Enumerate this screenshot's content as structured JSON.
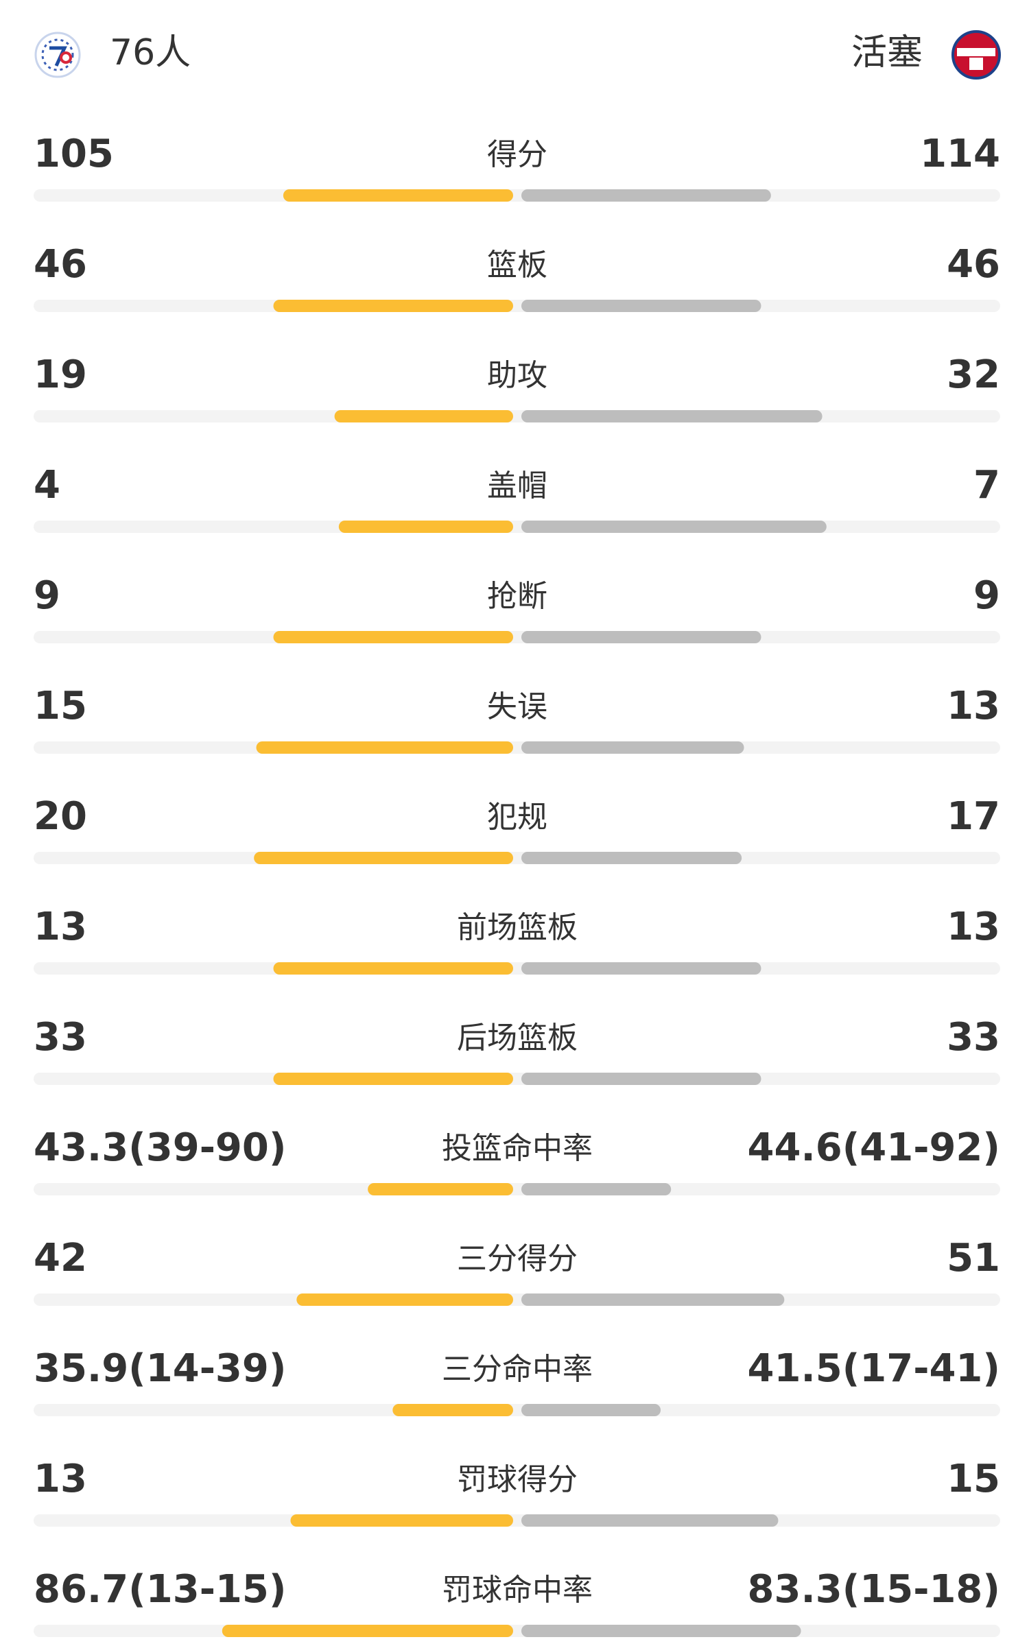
{
  "header": {
    "home": "76人",
    "away": "活塞"
  },
  "rows": [
    {
      "label": "得分",
      "home": 105,
      "away": 114
    },
    {
      "label": "篮板",
      "home": 46,
      "away": 46
    },
    {
      "label": "助攻",
      "home": 19,
      "away": 32
    },
    {
      "label": "盖帽",
      "home": 4,
      "away": 7
    },
    {
      "label": "抢断",
      "home": 9,
      "away": 9
    },
    {
      "label": "失误",
      "home": 15,
      "away": 13
    },
    {
      "label": "犯规",
      "home": 20,
      "away": 17
    },
    {
      "label": "前场篮板",
      "home": 13,
      "away": 13
    },
    {
      "label": "后场篮板",
      "home": 33,
      "away": 33
    },
    {
      "label": "投篮命中率",
      "home": {
        "value": 43.3,
        "label": "43.3(39-90)"
      },
      "away": {
        "value": 44.6,
        "label": "44.6(41-92)"
      }
    },
    {
      "label": "三分得分",
      "home": 42,
      "away": 51
    },
    {
      "label": "三分命中率",
      "home": {
        "value": 35.9,
        "label": "35.9(14-39)"
      },
      "away": {
        "value": 41.5,
        "label": "41.5(17-41)"
      }
    },
    {
      "label": "罚球得分",
      "home": 13,
      "away": 15
    },
    {
      "label": "罚球命中率",
      "home": {
        "value": 86.7,
        "label": "86.7(13-15)"
      },
      "away": {
        "value": 83.3,
        "label": "83.3(15-18)"
      }
    }
  ]
}
